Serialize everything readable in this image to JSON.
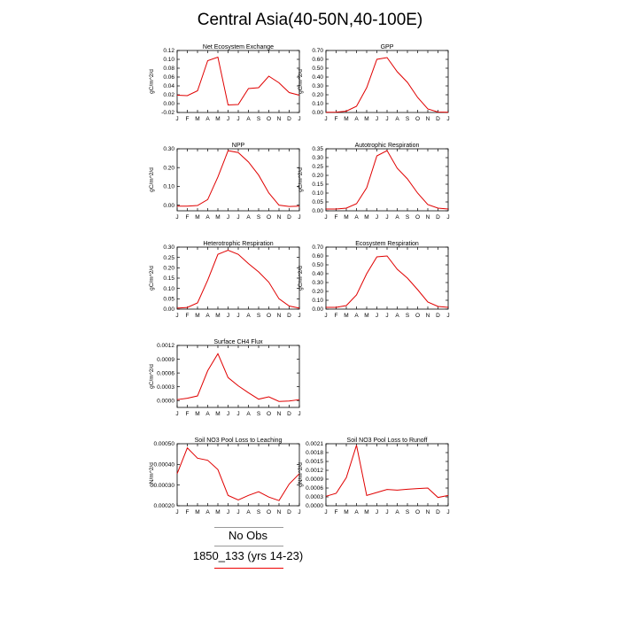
{
  "title": "Central Asia(40-50N,40-100E)",
  "months": [
    "J",
    "F",
    "M",
    "A",
    "M",
    "J",
    "J",
    "A",
    "S",
    "O",
    "N",
    "D",
    "J"
  ],
  "line_color": "#e00000",
  "legend": {
    "obs_label": "No Obs",
    "case_label": "1850_133 (yrs 14-23)"
  },
  "chart_data": [
    {
      "type": "line",
      "title": "Net Ecosystem Exchange",
      "ylabel": "gC/m^2/d",
      "ylim": [
        -0.02,
        0.12
      ],
      "yticks": [
        "-0.02",
        "0.00",
        "0.02",
        "0.04",
        "0.06",
        "0.08",
        "0.10",
        "0.12"
      ],
      "values": [
        0.019,
        0.018,
        0.029,
        0.097,
        0.105,
        -0.003,
        -0.002,
        0.034,
        0.036,
        0.062,
        0.047,
        0.025,
        0.019
      ]
    },
    {
      "type": "line",
      "title": "GPP",
      "ylabel": "gC/m^2/d",
      "ylim": [
        0.0,
        0.7
      ],
      "yticks": [
        "0.00",
        "0.10",
        "0.20",
        "0.30",
        "0.40",
        "0.50",
        "0.60",
        "0.70"
      ],
      "values": [
        0.003,
        0.004,
        0.015,
        0.07,
        0.28,
        0.6,
        0.62,
        0.46,
        0.34,
        0.17,
        0.04,
        0.005,
        0.003
      ]
    },
    {
      "type": "line",
      "title": "NPP",
      "ylabel": "gC/m^2/d",
      "ylim": [
        -0.03,
        0.3
      ],
      "yticks": [
        "0.00",
        "0.10",
        "0.20",
        "0.30"
      ],
      "ytickvals": [
        0.0,
        0.1,
        0.2,
        0.3
      ],
      "values": [
        -0.005,
        -0.005,
        -0.002,
        0.03,
        0.15,
        0.29,
        0.28,
        0.23,
        0.16,
        0.065,
        0.0,
        -0.007,
        -0.005
      ]
    },
    {
      "type": "line",
      "title": "Autotrophic Respiration",
      "ylabel": "gC/m^2/d",
      "ylim": [
        0.0,
        0.35
      ],
      "yticks": [
        "0.00",
        "0.05",
        "0.10",
        "0.15",
        "0.20",
        "0.25",
        "0.30",
        "0.35"
      ],
      "values": [
        0.01,
        0.01,
        0.015,
        0.04,
        0.13,
        0.31,
        0.34,
        0.24,
        0.18,
        0.1,
        0.035,
        0.015,
        0.01
      ]
    },
    {
      "type": "line",
      "title": "Heterotrophic Respiration",
      "ylabel": "gC/m^2/d",
      "ylim": [
        0.0,
        0.3
      ],
      "yticks": [
        "0.00",
        "0.05",
        "0.10",
        "0.15",
        "0.20",
        "0.25",
        "0.30"
      ],
      "values": [
        0.005,
        0.008,
        0.03,
        0.14,
        0.265,
        0.285,
        0.265,
        0.22,
        0.18,
        0.13,
        0.05,
        0.015,
        0.005
      ]
    },
    {
      "type": "line",
      "title": "Ecosystem Respiration",
      "ylabel": "gC/m^2/d",
      "ylim": [
        0.0,
        0.7
      ],
      "yticks": [
        "0.00",
        "0.10",
        "0.20",
        "0.30",
        "0.40",
        "0.50",
        "0.60",
        "0.70"
      ],
      "values": [
        0.02,
        0.02,
        0.04,
        0.16,
        0.4,
        0.59,
        0.6,
        0.45,
        0.35,
        0.22,
        0.08,
        0.03,
        0.02
      ]
    },
    {
      "type": "line",
      "title": "Surface CH4 Flux",
      "ylabel": "gC/m^2/d",
      "ylim": [
        -0.00015,
        0.0012
      ],
      "yticks": [
        "0.0000",
        "0.0003",
        "0.0006",
        "0.0009",
        "0.0012"
      ],
      "ytickvals": [
        0.0,
        0.0003,
        0.0006,
        0.0009,
        0.0012
      ],
      "values": [
        2e-05,
        5e-05,
        0.0001,
        0.00065,
        0.00102,
        0.0005,
        0.00032,
        0.00017,
        3e-05,
        8e-05,
        -2e-05,
        -1e-05,
        2e-05
      ]
    },
    null,
    {
      "type": "line",
      "title": "Soil NO3 Pool Loss to Leaching",
      "ylabel": "gN/m^2/d",
      "ylim": [
        0.0002,
        0.0005
      ],
      "yticks": [
        "0.00020",
        "0.00030",
        "0.00040",
        "0.00050"
      ],
      "values": [
        0.000355,
        0.00048,
        0.00043,
        0.00042,
        0.000375,
        0.00025,
        0.000228,
        0.00025,
        0.000268,
        0.000242,
        0.000225,
        0.000305,
        0.000355
      ]
    },
    {
      "type": "line",
      "title": "Soil NO3 Pool Loss to Runoff",
      "ylabel": "gN/m^2/d",
      "ylim": [
        0.0,
        0.0021
      ],
      "yticks": [
        "0.0000",
        "0.0003",
        "0.0006",
        "0.0009",
        "0.0012",
        "0.0015",
        "0.0018",
        "0.0021"
      ],
      "values": [
        0.00032,
        0.00042,
        0.00095,
        0.00205,
        0.00035,
        0.00045,
        0.00055,
        0.00053,
        0.00056,
        0.00058,
        0.0006,
        0.00028,
        0.00035
      ]
    }
  ]
}
